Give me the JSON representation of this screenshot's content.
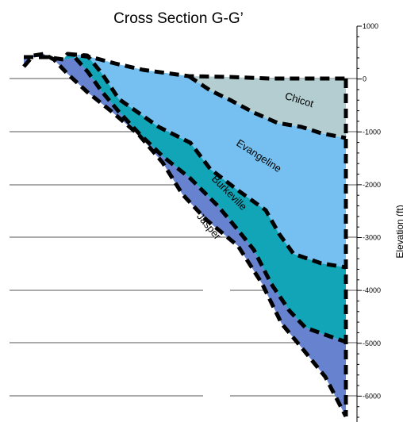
{
  "figure": {
    "title": "Cross Section G-G’",
    "axis_title": "Elevation (ft)",
    "units": [
      {
        "name": "Chicot",
        "color": "#b3cdd1"
      },
      {
        "name": "Evangeline",
        "color": "#75c0f0"
      },
      {
        "name": "Burkeville",
        "color": "#12a5b8"
      },
      {
        "name": "Jasper",
        "color": "#6782cf"
      }
    ]
  },
  "chart_data": {
    "type": "area",
    "title": "Cross Section G-G’",
    "ylabel": "Elevation (ft)",
    "ylim": [
      -7000,
      1000
    ],
    "y_ticks": [
      {
        "value": 1000,
        "label": "1000"
      },
      {
        "value": 0,
        "label": "0"
      },
      {
        "value": -1000,
        "label": "-1000"
      },
      {
        "value": -2000,
        "label": "-2000"
      },
      {
        "value": -3000,
        "label": "-3000"
      },
      {
        "value": -4000,
        "label": "-4000"
      },
      {
        "value": -5000,
        "label": "-5000"
      },
      {
        "value": -6000,
        "label": "-6000"
      }
    ],
    "grid": true
  }
}
